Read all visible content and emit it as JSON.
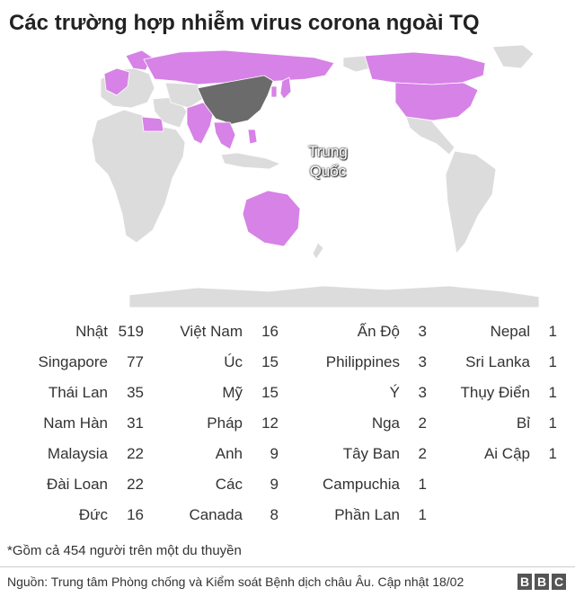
{
  "title": "Các trường hợp nhiễm virus corona ngoài TQ",
  "map": {
    "china_label_line1": "Trung",
    "china_label_line2": "Quốc",
    "colors": {
      "affected": "#d682e6",
      "china": "#6b6b6b",
      "unaffected": "#dcdcdc",
      "border": "#ffffff"
    },
    "affected_countries": [
      "Nhật",
      "Singapore",
      "Thái Lan",
      "Nam Hàn",
      "Malaysia",
      "Đài Loan",
      "Đức",
      "Việt Nam",
      "Úc",
      "Mỹ",
      "Pháp",
      "Anh",
      "Các",
      "Canada",
      "Ấn Độ",
      "Philippines",
      "Ý",
      "Nga",
      "Tây Ban",
      "Campuchia",
      "Phần Lan",
      "Nepal",
      "Sri Lanka",
      "Thụy Điển",
      "Bỉ",
      "Ai Cập"
    ]
  },
  "columns": [
    [
      {
        "country": "Nhật",
        "cases": "519"
      },
      {
        "country": "Singapore",
        "cases": "77"
      },
      {
        "country": "Thái Lan",
        "cases": "35"
      },
      {
        "country": "Nam Hàn",
        "cases": "31"
      },
      {
        "country": "Malaysia",
        "cases": "22"
      },
      {
        "country": "Đài Loan",
        "cases": "22"
      },
      {
        "country": "Đức",
        "cases": "16"
      }
    ],
    [
      {
        "country": "Việt Nam",
        "cases": "16"
      },
      {
        "country": "Úc",
        "cases": "15"
      },
      {
        "country": "Mỹ",
        "cases": "15"
      },
      {
        "country": "Pháp",
        "cases": "12"
      },
      {
        "country": "Anh",
        "cases": "9"
      },
      {
        "country": "Các",
        "cases": "9"
      },
      {
        "country": "Canada",
        "cases": "8"
      }
    ],
    [
      {
        "country": "Ấn Độ",
        "cases": "3"
      },
      {
        "country": "Philippines",
        "cases": "3"
      },
      {
        "country": "Ý",
        "cases": "3"
      },
      {
        "country": "Nga",
        "cases": "2"
      },
      {
        "country": "Tây Ban",
        "cases": "2"
      },
      {
        "country": "Campuchia",
        "cases": "1"
      },
      {
        "country": "Phần Lan",
        "cases": "1"
      }
    ],
    [
      {
        "country": "Nepal",
        "cases": "1"
      },
      {
        "country": "Sri Lanka",
        "cases": "1"
      },
      {
        "country": "Thụy Điển",
        "cases": "1"
      },
      {
        "country": "Bỉ",
        "cases": "1"
      },
      {
        "country": "Ai Cập",
        "cases": "1"
      }
    ]
  ],
  "footnote": "*Gồm cả 454 người trên một du thuyền",
  "source": "Nguồn: Trung tâm Phòng chống và Kiểm soát Bệnh dịch châu Âu. Cập nhật 18/02",
  "logo": [
    "B",
    "B",
    "C"
  ]
}
